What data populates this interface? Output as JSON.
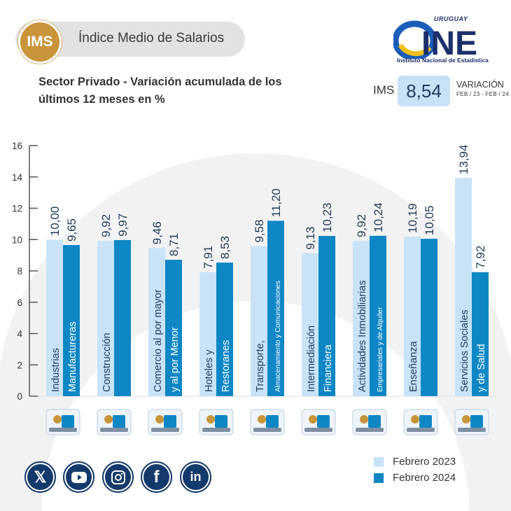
{
  "header": {
    "badge": "IMS",
    "title": "Índice Medio de Salarios",
    "subtitle_line1": "Sector Privado - Variación acumulada de los",
    "subtitle_line2": "últimos 12 meses en %"
  },
  "logo": {
    "country": "URUGUAY",
    "name": "INE",
    "subtitle": "Instituto Nacional de Estadística"
  },
  "kpi": {
    "label": "IMS",
    "value": "8,54",
    "variation_label": "VARIACIÓN",
    "period": "FEB / 23 - FEB / 24"
  },
  "colors": {
    "feb2023": "#c8e3f8",
    "feb2024": "#0e87c4",
    "arc": "#eeeeee",
    "gold": "#c9953a",
    "navy": "#143a6b"
  },
  "chart_data": {
    "type": "bar",
    "ylim": [
      0,
      16
    ],
    "yticks": [
      0,
      2,
      4,
      6,
      8,
      10,
      12,
      14,
      16
    ],
    "categories": [
      [
        "Industrias",
        "Manufactureras"
      ],
      [
        "Construcción",
        ""
      ],
      [
        "Comercio al por mayor",
        "y al por Menor"
      ],
      [
        "Hoteles y",
        "Restoranes"
      ],
      [
        "Transporte,",
        "Almacenamiento y Comunicaciones"
      ],
      [
        "Intermediación",
        "Financiera"
      ],
      [
        "Actividades Inmobiliarias",
        "Empresariales y de Alquiler"
      ],
      [
        "Enseñanza",
        ""
      ],
      [
        "Servicios Sociales",
        "y de Salud"
      ]
    ],
    "series": [
      {
        "name": "Febrero 2023",
        "values": [
          10.0,
          9.92,
          9.46,
          7.91,
          9.58,
          9.13,
          9.92,
          10.19,
          13.94
        ],
        "labels": [
          "10,00",
          "9,92",
          "9,46",
          "7,91",
          "9,58",
          "9,13",
          "9,92",
          "10,19",
          "13,94"
        ]
      },
      {
        "name": "Febrero 2024",
        "values": [
          9.65,
          9.97,
          8.71,
          8.53,
          11.2,
          10.23,
          10.24,
          10.05,
          7.92
        ],
        "labels": [
          "9,65",
          "9,97",
          "8,71",
          "8,53",
          "11,20",
          "10,23",
          "10,24",
          "10,05",
          "7,92"
        ]
      }
    ],
    "icons": [
      "factory-workers-icon",
      "construction-worker-icon",
      "store-shelves-icon",
      "restaurant-icon",
      "transport-icon",
      "finance-calculator-icon",
      "real-estate-keys-icon",
      "teacher-icon",
      "hospital-icon"
    ]
  },
  "legend": {
    "items": [
      "Febrero 2023",
      "Febrero 2024"
    ]
  },
  "social": [
    "x-icon",
    "youtube-icon",
    "instagram-icon",
    "facebook-icon",
    "linkedin-icon"
  ]
}
